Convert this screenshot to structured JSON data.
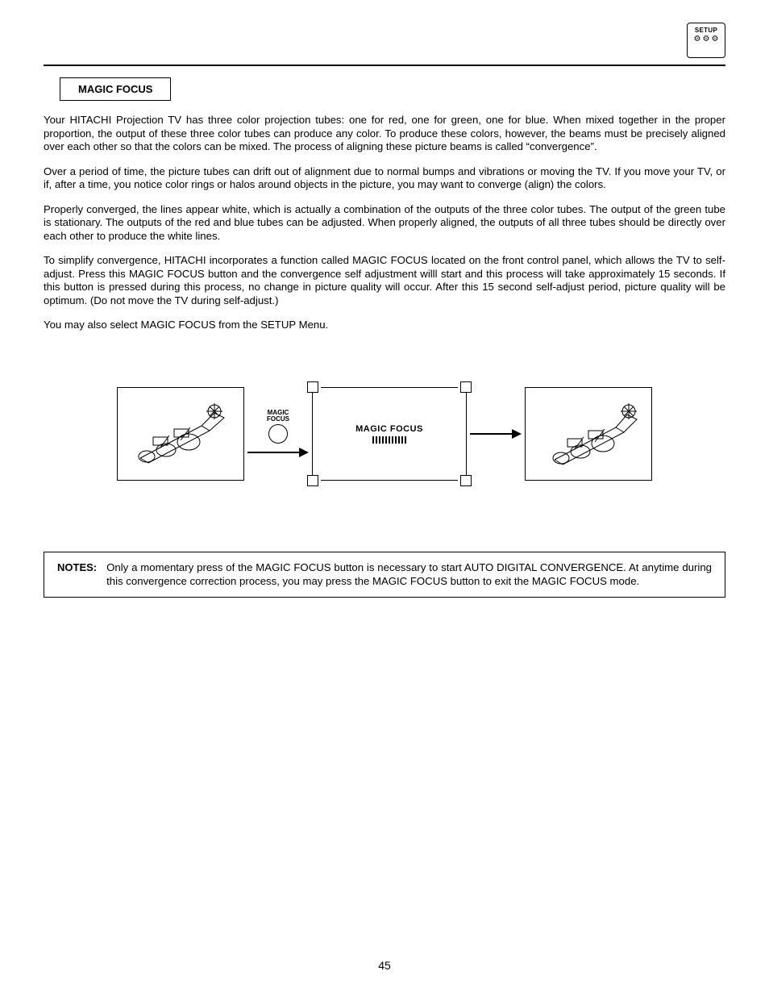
{
  "badge": {
    "label": "SETUP"
  },
  "section_title": "MAGIC FOCUS",
  "paragraphs": {
    "p1": "Your HITACHI Projection TV has three color projection tubes: one for red, one for green, one for blue.  When mixed together in the proper proportion, the output of these three color tubes can produce any color.  To produce these colors, however, the beams must be precisely aligned over each other so that the colors can be mixed.  The process of aligning these picture beams is called “convergence”.",
    "p2": "Over a period of time, the picture tubes can drift out of alignment due to normal bumps and vibrations or moving the TV.  If you move your TV, or if, after a time, you notice color rings or halos around objects in the picture, you may want to converge (align) the colors.",
    "p3": "Properly converged, the lines appear white, which is actually a combination of the outputs of the three color tubes.  The output of the green tube is stationary. The outputs of the red and blue tubes can be adjusted.  When properly aligned, the outputs of all three tubes should be directly over each other to produce the white lines.",
    "p4": "To simplify convergence, HITACHI incorporates a function called MAGIC FOCUS located on the front control panel, which allows the TV to self-adjust. Press this MAGIC FOCUS button and the convergence self adjustment willl start and this process will take approximately 15 seconds.  If this button is pressed during this process, no change in picture quality will occur.  After this 15 second self-adjust period, picture quality will be optimum.  (Do not move the TV during self-adjust.)",
    "p5": "You may also select MAGIC FOCUS from the SETUP Menu."
  },
  "diagram": {
    "button_label_top": "MAGIC",
    "button_label_bottom": "FOCUS",
    "screen_label": "MAGIC FOCUS",
    "progress_ticks": 11,
    "arrow_color": "#000000",
    "border_color": "#000000"
  },
  "notes": {
    "label": "NOTES:",
    "text": "Only a momentary press of the MAGIC FOCUS button is necessary to start AUTO DIGITAL CONVERGENCE.  At anytime during this convergence correction process, you may press the MAGIC FOCUS button to exit the MAGIC FOCUS mode."
  },
  "page_number": "45",
  "colors": {
    "text": "#000000",
    "bg": "#ffffff"
  }
}
